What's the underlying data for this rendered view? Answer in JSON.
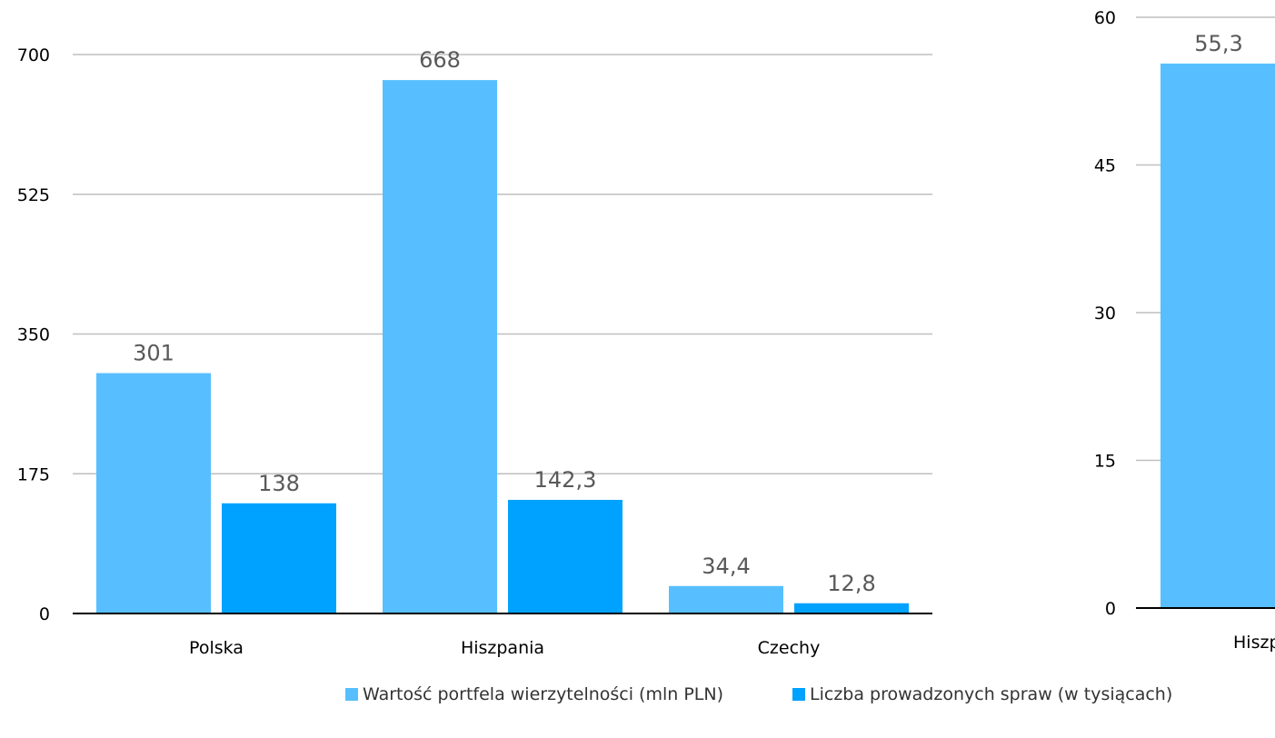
{
  "chart_data": [
    {
      "type": "bar",
      "categories": [
        "Polska",
        "Hiszpania",
        "Czechy"
      ],
      "series": [
        {
          "name": "Wartość portfela wierzytelności (mln PLN)",
          "values": [
            301,
            668,
            34.4
          ],
          "labels": [
            "301",
            "668",
            "34,4"
          ],
          "color": "#57BFFF"
        },
        {
          "name": "Liczba prowadzonych spraw (w tysiącach)",
          "values": [
            138,
            142.3,
            12.8
          ],
          "labels": [
            "138",
            "142,3",
            "12,8"
          ],
          "color": "#00A2FF"
        }
      ],
      "ylim": [
        0,
        700
      ],
      "yticks": [
        0,
        175,
        350,
        525,
        700
      ],
      "grid": true,
      "legend": "bottom"
    },
    {
      "type": "bar",
      "categories": [
        "Hiszp"
      ],
      "series": [
        {
          "name": "",
          "values": [
            55.3
          ],
          "labels": [
            "55,3"
          ],
          "color": "#57BFFF"
        }
      ],
      "ylim": [
        0,
        60
      ],
      "yticks": [
        0,
        15,
        30,
        45,
        60
      ],
      "grid": true
    }
  ]
}
